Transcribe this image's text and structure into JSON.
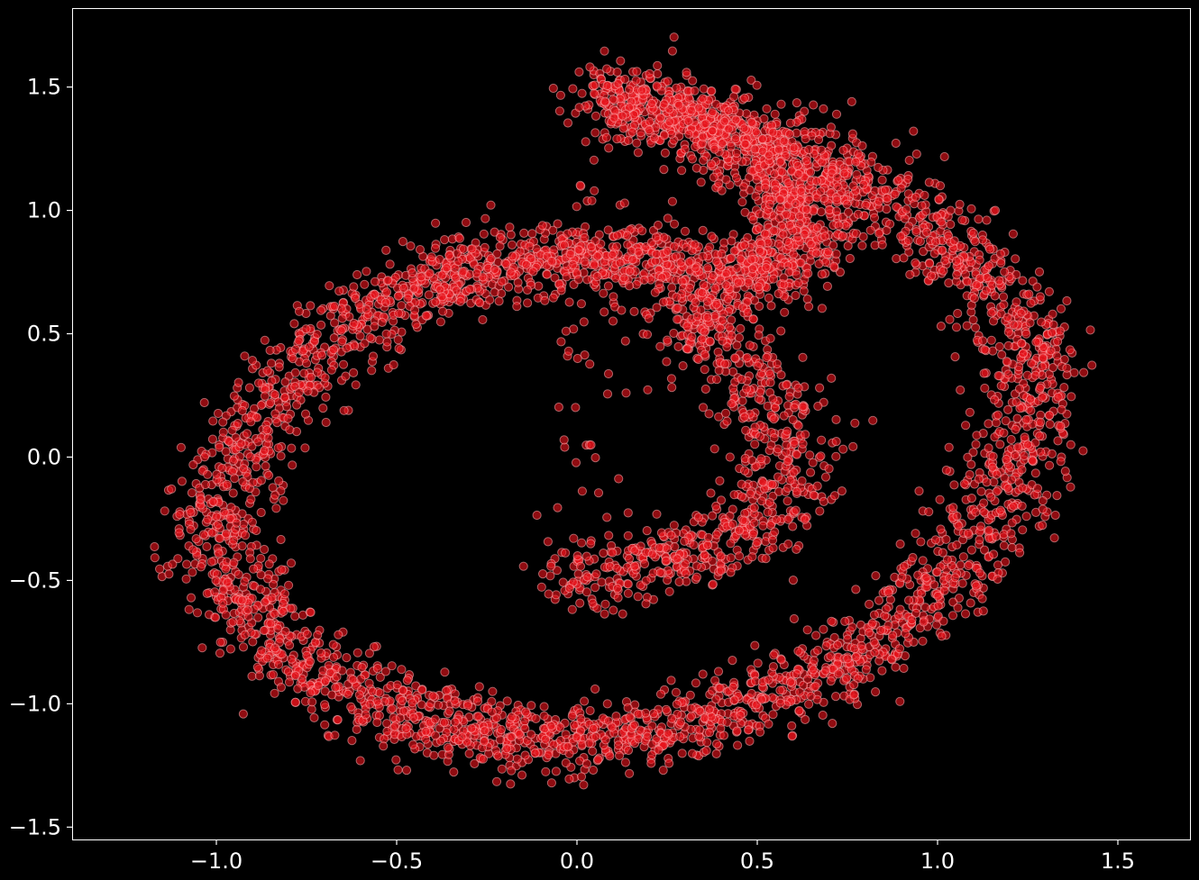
{
  "chart_data": {
    "type": "scatter",
    "title": "",
    "xlabel": "",
    "ylabel": "",
    "xlim": [
      -1.4,
      1.7
    ],
    "ylim": [
      -1.55,
      1.82
    ],
    "x_ticks": [
      -1.0,
      -0.5,
      0.0,
      0.5,
      1.0,
      1.5
    ],
    "x_tick_labels": [
      "−1.0",
      "−0.5",
      "0.0",
      "0.5",
      "1.0",
      "1.5"
    ],
    "y_ticks": [
      -1.5,
      -1.0,
      -0.5,
      0.0,
      0.5,
      1.0,
      1.5
    ],
    "y_tick_labels": [
      "−1.5",
      "−1.0",
      "−0.5",
      "0.0",
      "0.5",
      "1.0",
      "1.5"
    ],
    "grid": false,
    "legend": "none",
    "colors": {
      "background": "#000000",
      "marker_fill": "#e8141c",
      "marker_edge": "#ffb0b4",
      "axes": "#ffffff"
    },
    "series": [
      {
        "x": [
          0.05,
          0.15,
          0.25,
          0.35,
          0.45,
          0.52,
          0.58,
          0.62,
          0.64,
          0.63,
          0.6,
          0.55,
          0.5,
          0.42,
          0.33,
          0.25,
          0.15,
          0.05,
          -0.05,
          -0.15,
          -0.25,
          -0.35,
          -0.45,
          -0.55,
          -0.65,
          -0.75,
          -0.85,
          -0.92,
          -0.98,
          -1.0,
          -0.98,
          -0.92,
          -0.85,
          -0.76,
          -0.66,
          -0.55,
          -0.44,
          -0.33,
          -0.22,
          -0.1,
          0.02,
          0.15,
          0.28,
          0.4,
          0.52,
          0.64,
          0.75,
          0.85,
          0.95,
          1.04,
          1.12,
          1.19,
          1.24,
          1.27,
          1.26,
          1.22,
          1.15,
          1.06,
          0.96,
          0.86,
          0.75,
          0.63,
          0.5,
          0.37,
          0.24,
          0.1,
          -0.02,
          0.12,
          0.25,
          0.38,
          0.48,
          0.56,
          0.58,
          0.55,
          0.45,
          0.33
        ],
        "y": [
          1.47,
          1.42,
          1.38,
          1.33,
          1.27,
          1.2,
          1.12,
          1.05,
          0.98,
          0.92,
          0.85,
          0.78,
          0.71,
          0.68,
          0.75,
          0.78,
          0.8,
          0.82,
          0.8,
          0.78,
          0.76,
          0.74,
          0.7,
          0.62,
          0.52,
          0.38,
          0.22,
          0.05,
          -0.12,
          -0.28,
          -0.44,
          -0.58,
          -0.72,
          -0.84,
          -0.93,
          -1.0,
          -1.05,
          -1.09,
          -1.12,
          -1.14,
          -1.14,
          -1.12,
          -1.09,
          -1.04,
          -0.98,
          -0.9,
          -0.81,
          -0.7,
          -0.58,
          -0.44,
          -0.28,
          -0.12,
          0.05,
          0.22,
          0.38,
          0.53,
          0.67,
          0.8,
          0.93,
          1.05,
          1.15,
          1.24,
          1.31,
          1.37,
          1.42,
          1.45,
          -0.52,
          -0.46,
          -0.42,
          -0.36,
          -0.28,
          -0.14,
          0.02,
          0.2,
          0.38,
          0.55
        ]
      }
    ]
  }
}
